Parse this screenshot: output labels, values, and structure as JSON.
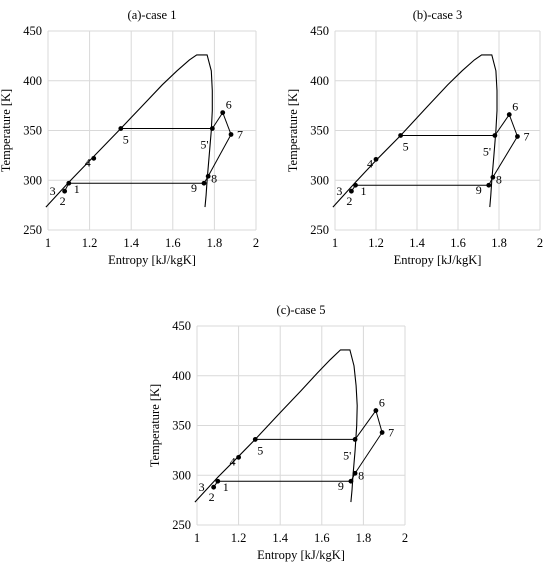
{
  "chart_data": [
    {
      "type": "line",
      "title": "(a)-case 1",
      "xlabel": "Entropy [kJ/kgK]",
      "ylabel": "Temperature [K]",
      "xlim": [
        1,
        2
      ],
      "ylim": [
        250,
        450
      ],
      "xticks": [
        "1",
        "1.2",
        "1.4",
        "1.6",
        "1.8",
        "2"
      ],
      "yticks": [
        "250",
        "300",
        "350",
        "400",
        "450"
      ],
      "grid": true,
      "saturation_dome": {
        "liquid": [
          [
            0.99,
            273
          ],
          [
            1.1,
            298
          ],
          [
            1.22,
            324
          ],
          [
            1.35,
            352
          ],
          [
            1.45,
            374
          ],
          [
            1.55,
            396
          ],
          [
            1.62,
            410
          ],
          [
            1.68,
            421
          ],
          [
            1.715,
            426
          ]
        ],
        "top": [
          [
            1.715,
            426
          ],
          [
            1.765,
            426
          ]
        ],
        "vapor": [
          [
            1.765,
            426
          ],
          [
            1.785,
            410
          ],
          [
            1.79,
            390
          ],
          [
            1.79,
            370
          ],
          [
            1.785,
            350
          ],
          [
            1.775,
            325
          ],
          [
            1.765,
            300
          ],
          [
            1.76,
            285
          ],
          [
            1.755,
            273
          ]
        ]
      },
      "cycle_points": [
        {
          "label": "1",
          "s": 1.1,
          "T": 297
        },
        {
          "label": "2",
          "s": 1.08,
          "T": 289
        },
        {
          "label": "3",
          "s": 1.08,
          "T": 289
        },
        {
          "label": "4",
          "s": 1.22,
          "T": 322
        },
        {
          "label": "5",
          "s": 1.35,
          "T": 352
        },
        {
          "label": "5'",
          "s": 1.79,
          "T": 352
        },
        {
          "label": "6",
          "s": 1.84,
          "T": 368
        },
        {
          "label": "7",
          "s": 1.88,
          "T": 346
        },
        {
          "label": "8",
          "s": 1.77,
          "T": 304
        },
        {
          "label": "9",
          "s": 1.75,
          "T": 297
        }
      ]
    },
    {
      "type": "line",
      "title": "(b)-case 3",
      "xlabel": "Entropy [kJ/kgK]",
      "ylabel": "Temperature [K]",
      "xlim": [
        1,
        2
      ],
      "ylim": [
        250,
        450
      ],
      "xticks": [
        "1",
        "1.2",
        "1.4",
        "1.6",
        "1.8",
        "2"
      ],
      "yticks": [
        "250",
        "300",
        "350",
        "400",
        "450"
      ],
      "grid": true,
      "saturation_dome": {
        "liquid": [
          [
            0.99,
            273
          ],
          [
            1.1,
            298
          ],
          [
            1.2,
            320
          ],
          [
            1.32,
            345
          ],
          [
            1.45,
            374
          ],
          [
            1.55,
            396
          ],
          [
            1.62,
            410
          ],
          [
            1.68,
            421
          ],
          [
            1.715,
            426
          ]
        ],
        "top": [
          [
            1.715,
            426
          ],
          [
            1.765,
            426
          ]
        ],
        "vapor": [
          [
            1.765,
            426
          ],
          [
            1.785,
            410
          ],
          [
            1.79,
            390
          ],
          [
            1.79,
            370
          ],
          [
            1.785,
            350
          ],
          [
            1.775,
            325
          ],
          [
            1.765,
            300
          ],
          [
            1.76,
            285
          ],
          [
            1.755,
            273
          ]
        ]
      },
      "cycle_points": [
        {
          "label": "1",
          "s": 1.1,
          "T": 295
        },
        {
          "label": "2",
          "s": 1.08,
          "T": 289
        },
        {
          "label": "3",
          "s": 1.08,
          "T": 289
        },
        {
          "label": "4",
          "s": 1.2,
          "T": 321
        },
        {
          "label": "5",
          "s": 1.32,
          "T": 345
        },
        {
          "label": "5'",
          "s": 1.78,
          "T": 345
        },
        {
          "label": "6",
          "s": 1.85,
          "T": 366
        },
        {
          "label": "7",
          "s": 1.89,
          "T": 344
        },
        {
          "label": "8",
          "s": 1.77,
          "T": 303
        },
        {
          "label": "9",
          "s": 1.75,
          "T": 295
        }
      ]
    },
    {
      "type": "line",
      "title": "(c)-case 5",
      "xlabel": "Entropy [kJ/kgK]",
      "ylabel": "Temperature [K]",
      "xlim": [
        1,
        2
      ],
      "ylim": [
        250,
        450
      ],
      "xticks": [
        "1",
        "1.2",
        "1.4",
        "1.6",
        "1.8",
        "2"
      ],
      "yticks": [
        "250",
        "300",
        "350",
        "400",
        "450"
      ],
      "grid": true,
      "saturation_dome": {
        "liquid": [
          [
            0.99,
            273
          ],
          [
            1.1,
            298
          ],
          [
            1.2,
            319
          ],
          [
            1.28,
            336
          ],
          [
            1.4,
            363
          ],
          [
            1.5,
            385
          ],
          [
            1.58,
            403
          ],
          [
            1.64,
            416
          ],
          [
            1.69,
            426
          ]
        ],
        "top": [
          [
            1.69,
            426
          ],
          [
            1.735,
            426
          ]
        ],
        "vapor": [
          [
            1.735,
            426
          ],
          [
            1.755,
            410
          ],
          [
            1.765,
            390
          ],
          [
            1.77,
            370
          ],
          [
            1.768,
            350
          ],
          [
            1.76,
            325
          ],
          [
            1.75,
            300
          ],
          [
            1.745,
            285
          ],
          [
            1.74,
            273
          ]
        ]
      },
      "cycle_points": [
        {
          "label": "1",
          "s": 1.1,
          "T": 294
        },
        {
          "label": "2",
          "s": 1.08,
          "T": 288
        },
        {
          "label": "3",
          "s": 1.08,
          "T": 288
        },
        {
          "label": "4",
          "s": 1.2,
          "T": 318
        },
        {
          "label": "5",
          "s": 1.28,
          "T": 336
        },
        {
          "label": "5'",
          "s": 1.76,
          "T": 336
        },
        {
          "label": "6",
          "s": 1.86,
          "T": 365
        },
        {
          "label": "7",
          "s": 1.89,
          "T": 343
        },
        {
          "label": "8",
          "s": 1.76,
          "T": 302
        },
        {
          "label": "9",
          "s": 1.74,
          "T": 294
        }
      ]
    }
  ]
}
